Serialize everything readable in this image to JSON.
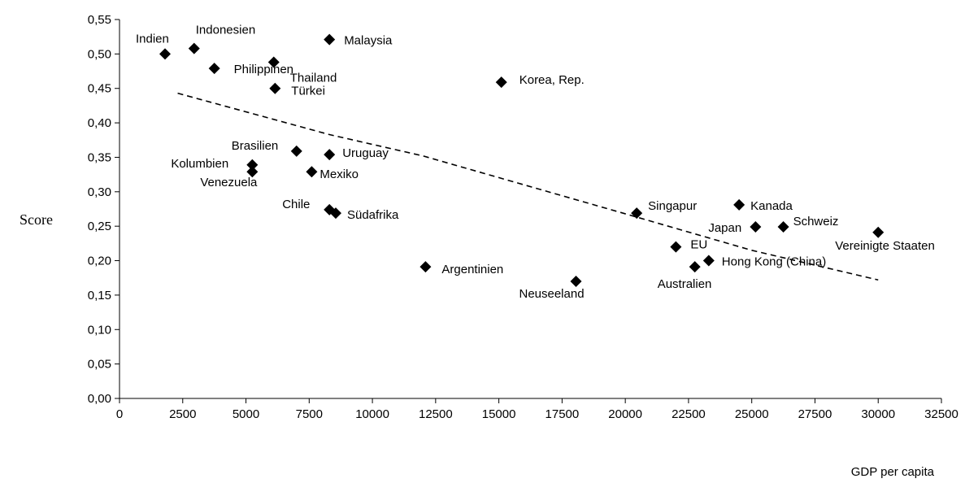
{
  "chart_data": {
    "type": "scatter",
    "title": "",
    "xlabel": "GDP per capita",
    "ylabel": "Score",
    "xlim": [
      0,
      32500
    ],
    "ylim": [
      0,
      0.55
    ],
    "x_ticks": [
      "0",
      "2500",
      "5000",
      "7500",
      "10000",
      "12500",
      "15000",
      "17500",
      "20000",
      "22500",
      "25000",
      "27500",
      "30000",
      "32500"
    ],
    "y_ticks": [
      "0,00",
      "0,05",
      "0,10",
      "0,15",
      "0,20",
      "0,25",
      "0,30",
      "0,35",
      "0,40",
      "0,45",
      "0,50",
      "0,55"
    ],
    "grid": false,
    "legend": "none",
    "marker": "diamond",
    "marker_color": "#000000",
    "points": [
      {
        "label": "Indien",
        "x": 1800,
        "y": 0.5
      },
      {
        "label": "Indonesien",
        "x": 2950,
        "y": 0.508
      },
      {
        "label": "Philippinen",
        "x": 3750,
        "y": 0.479
      },
      {
        "label": "Malaysia",
        "x": 8300,
        "y": 0.521
      },
      {
        "label": "Thailand",
        "x": 6100,
        "y": 0.488
      },
      {
        "label": "Türkei",
        "x": 6150,
        "y": 0.45
      },
      {
        "label": "Korea, Rep.",
        "x": 15100,
        "y": 0.459
      },
      {
        "label": "Brasilien",
        "x": 7000,
        "y": 0.359
      },
      {
        "label": "Uruguay",
        "x": 8300,
        "y": 0.354
      },
      {
        "label": "Kolumbien",
        "x": 5250,
        "y": 0.339
      },
      {
        "label": "Venezuela",
        "x": 5250,
        "y": 0.329
      },
      {
        "label": "Mexiko",
        "x": 7600,
        "y": 0.329
      },
      {
        "label": "Chile",
        "x": 8300,
        "y": 0.274
      },
      {
        "label": "Südafrika",
        "x": 8550,
        "y": 0.269
      },
      {
        "label": "Argentinien",
        "x": 12100,
        "y": 0.191
      },
      {
        "label": "Neuseeland",
        "x": 18050,
        "y": 0.17
      },
      {
        "label": "Singapur",
        "x": 20450,
        "y": 0.269
      },
      {
        "label": "EU",
        "x": 22000,
        "y": 0.22
      },
      {
        "label": "Australien",
        "x": 22750,
        "y": 0.191
      },
      {
        "label": "Hong Kong (China)",
        "x": 23300,
        "y": 0.2
      },
      {
        "label": "Kanada",
        "x": 24500,
        "y": 0.281
      },
      {
        "label": "Japan",
        "x": 25150,
        "y": 0.249
      },
      {
        "label": "Schweiz",
        "x": 26250,
        "y": 0.249
      },
      {
        "label": "Vereinigte Staaten",
        "x": 30000,
        "y": 0.241
      }
    ],
    "trendline": {
      "style": "dashed",
      "x": [
        2300,
        7000,
        8300,
        12000,
        20000,
        25000,
        30000
      ],
      "y": [
        0.443,
        0.396,
        0.383,
        0.352,
        0.268,
        0.215,
        0.172
      ]
    }
  }
}
